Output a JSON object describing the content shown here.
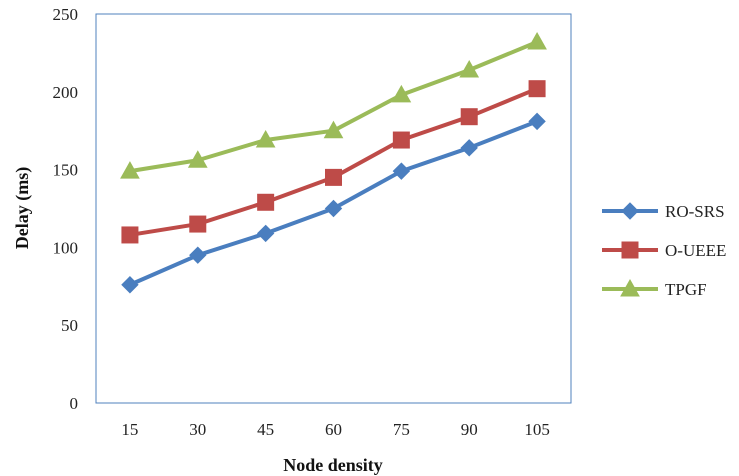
{
  "chart_data": {
    "type": "line",
    "title": "",
    "xlabel": "Node density",
    "ylabel": "Delay (ms)",
    "categories": [
      "15",
      "30",
      "45",
      "60",
      "75",
      "90",
      "105"
    ],
    "ylim": [
      0,
      250
    ],
    "yticks": [
      0,
      50,
      100,
      150,
      200,
      250
    ],
    "grid": false,
    "legend_position": "right",
    "series": [
      {
        "name": "RO-SRS",
        "values": [
          76,
          95,
          109,
          125,
          149,
          164,
          181
        ],
        "color": "#4a7ebf",
        "marker": "diamond"
      },
      {
        "name": "O-UEEE",
        "values": [
          108,
          115,
          129,
          145,
          169,
          184,
          202
        ],
        "color": "#be4b48",
        "marker": "square"
      },
      {
        "name": "TPGF",
        "values": [
          149,
          156,
          169,
          175,
          198,
          214,
          232
        ],
        "color": "#9bbb59",
        "marker": "triangle"
      }
    ]
  }
}
